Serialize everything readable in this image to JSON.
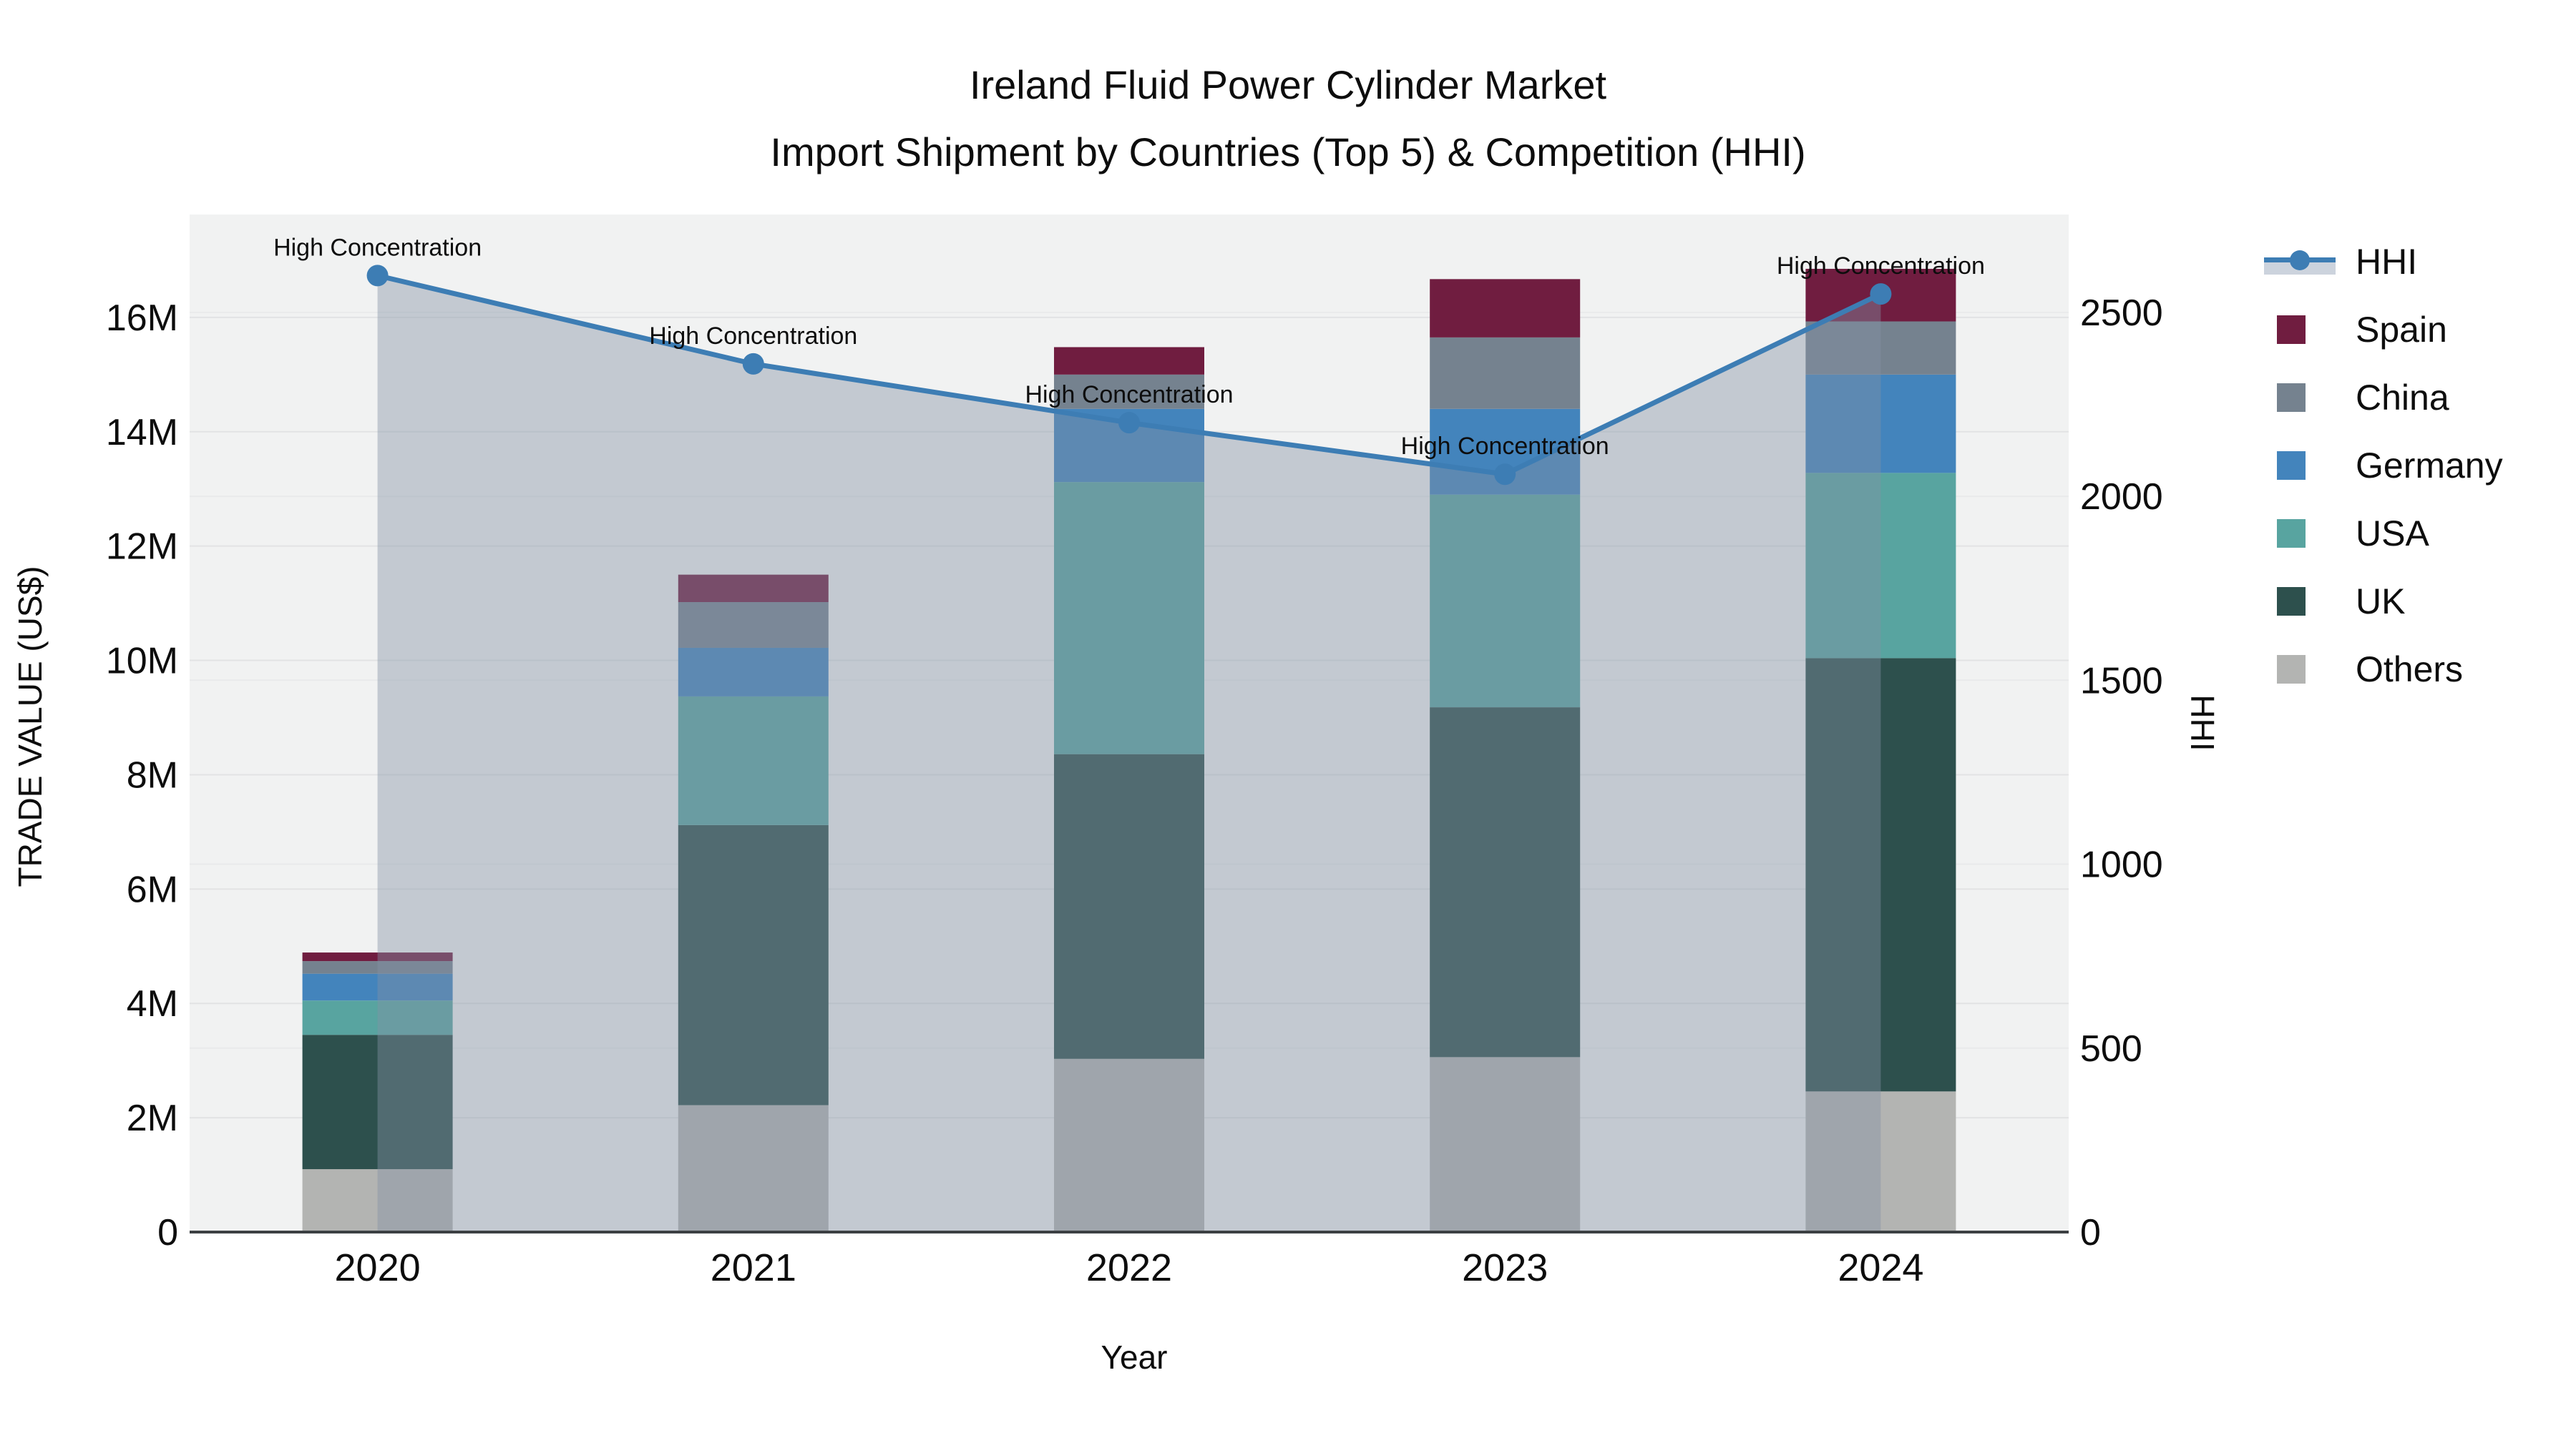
{
  "figure": {
    "title_line1": "Ireland Fluid Power Cylinder Market",
    "title_line2": "Import Shipment by Countries (Top 5) & Competition (HHI)"
  },
  "chart_data": {
    "type": "bar+line",
    "title": "Ireland Fluid Power Cylinder Market — Import Shipment by Countries (Top 5) & Competition (HHI)",
    "categories": [
      "2020",
      "2021",
      "2022",
      "2023",
      "2024"
    ],
    "bar_unit": "M US$",
    "bar_stack_order_bottom_to_top": [
      "Others",
      "UK",
      "USA",
      "Germany",
      "China",
      "Spain"
    ],
    "series": [
      {
        "name": "Others",
        "color": "#b3b4b2",
        "values": [
          1.1,
          2.22,
          3.03,
          3.06,
          2.46
        ]
      },
      {
        "name": "UK",
        "color": "#2d504d",
        "values": [
          2.35,
          4.9,
          5.33,
          6.12,
          7.58
        ]
      },
      {
        "name": "USA",
        "color": "#58a4a0",
        "values": [
          0.6,
          2.25,
          4.76,
          3.72,
          3.24
        ]
      },
      {
        "name": "Germany",
        "color": "#4384bc",
        "values": [
          0.47,
          0.85,
          1.28,
          1.5,
          1.72
        ]
      },
      {
        "name": "China",
        "color": "#75828f",
        "values": [
          0.22,
          0.8,
          0.6,
          1.25,
          0.93
        ]
      },
      {
        "name": "Spain",
        "color": "#701d40",
        "values": [
          0.15,
          0.48,
          0.48,
          1.02,
          0.92
        ]
      }
    ],
    "line_series": {
      "name": "HHI",
      "color": "#3d7db4",
      "area_fill": "rgba(130,145,165,0.42)",
      "values": [
        2600,
        2360,
        2200,
        2060,
        2550
      ]
    },
    "annotations": [
      {
        "x": "2020",
        "text": "High Concentration"
      },
      {
        "x": "2021",
        "text": "High Concentration"
      },
      {
        "x": "2022",
        "text": "High Concentration"
      },
      {
        "x": "2023",
        "text": "High Concentration"
      },
      {
        "x": "2024",
        "text": "High Concentration"
      }
    ],
    "y_left": {
      "label": "TRADE VALUE (US$)",
      "tick_labels": [
        "0",
        "2M",
        "4M",
        "6M",
        "8M",
        "10M",
        "12M",
        "14M",
        "16M"
      ],
      "tick_values": [
        0,
        2,
        4,
        6,
        8,
        10,
        12,
        14,
        16
      ],
      "range": [
        0,
        17.8
      ]
    },
    "y_right": {
      "label": "HHI",
      "tick_labels": [
        "0",
        "500",
        "1000",
        "1500",
        "2000",
        "2500"
      ],
      "tick_values": [
        0,
        500,
        1000,
        1500,
        2000,
        2500
      ],
      "range": [
        0,
        2766
      ]
    },
    "x_axis": {
      "label": "Year"
    },
    "grid": true,
    "legend_position": "right",
    "legend": [
      {
        "label": "HHI",
        "color": "#3d7db4",
        "kind": "line"
      },
      {
        "label": "Spain",
        "color": "#701d40",
        "kind": "box"
      },
      {
        "label": "China",
        "color": "#75828f",
        "kind": "box"
      },
      {
        "label": "Germany",
        "color": "#4384bc",
        "kind": "box"
      },
      {
        "label": "USA",
        "color": "#58a4a0",
        "kind": "box"
      },
      {
        "label": "UK",
        "color": "#2d504d",
        "kind": "box"
      },
      {
        "label": "Others",
        "color": "#b3b4b2",
        "kind": "box"
      }
    ],
    "style": {
      "plot_bg": "#f1f2f2",
      "grid_color_left": "#e2e3e4",
      "grid_color_right": "#e9eaeb",
      "axis_line_color": "#3c4043",
      "text_color": "#0d0d0d"
    }
  }
}
